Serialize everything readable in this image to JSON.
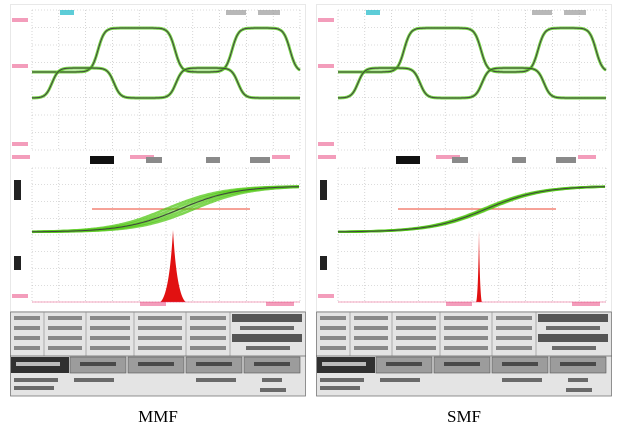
{
  "colors": {
    "grid": "#b8b8b8",
    "frame": "#e8e8e8",
    "magenta": "#e83c78",
    "cyan": "#19b8c8",
    "green": "#54c818",
    "trace": "#404040",
    "red": "#e11111",
    "pink": "#f06a5a",
    "table_bg": "#e4e4e4",
    "table_dark": "#303030"
  },
  "panels": [
    {
      "caption": "MMF",
      "spread": 7,
      "peak_width": 18,
      "peak_height": 1.0
    },
    {
      "caption": "SMF",
      "spread": 1.5,
      "peak_width": 4,
      "peak_height": 1.0
    }
  ]
}
